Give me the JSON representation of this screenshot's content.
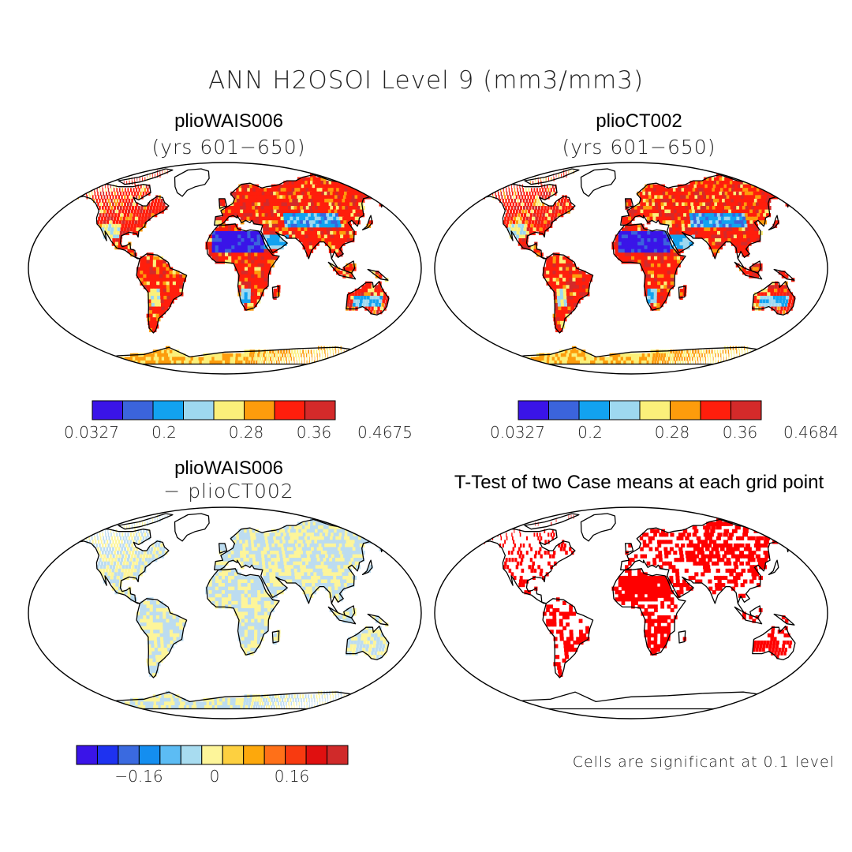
{
  "title": "ANN H2OSOI Level 9 (mm3/mm3)",
  "panels": [
    {
      "id": "top-left",
      "title": "plioWAIS006",
      "subtitle": "(yrs 601−650)",
      "type": "field"
    },
    {
      "id": "top-right",
      "title": "plioCT002",
      "subtitle": "(yrs 601−650)",
      "type": "field"
    },
    {
      "id": "bottom-left",
      "title": "plioWAIS006",
      "subtitle": "− plioCT002",
      "type": "difference"
    },
    {
      "id": "bottom-right",
      "title": "T-Test of two Case means at each grid point",
      "subtitle": "",
      "type": "significance"
    }
  ],
  "colorbars": {
    "top_left": {
      "colors": [
        "#3a14e8",
        "#3b64dc",
        "#12a2f0",
        "#9ed8f0",
        "#fbf07a",
        "#fd9c0c",
        "#ff1e0c",
        "#d42a2a"
      ],
      "ticks": [
        "0.0327",
        "0.2",
        "0.28",
        "0.36",
        "0.4675"
      ]
    },
    "top_right": {
      "colors": [
        "#3a14e8",
        "#3b64dc",
        "#12a2f0",
        "#9ed8f0",
        "#fbf07a",
        "#fd9c0c",
        "#ff1e0c",
        "#d42a2a"
      ],
      "ticks": [
        "0.0327",
        "0.2",
        "0.28",
        "0.36",
        "0.4684"
      ]
    },
    "bottom_left": {
      "colors": [
        "#3a14e8",
        "#1e32f0",
        "#3a6ae0",
        "#148ef0",
        "#5cbcf4",
        "#a8dcf0",
        "#fdf59a",
        "#fdd040",
        "#fda80c",
        "#ff7018",
        "#f83a10",
        "#e01010",
        "#d02a2a"
      ],
      "ticks": [
        "−0.16",
        "0",
        "0.16"
      ]
    }
  },
  "significance_note": "Cells are significant at 0.1 level",
  "colors": {
    "land_field_main": "#e02818",
    "desert": "#3b4fe0",
    "diff_main": "#bcdcf0",
    "diff_secondary": "#fdf59a",
    "significant": "#ff0000"
  }
}
